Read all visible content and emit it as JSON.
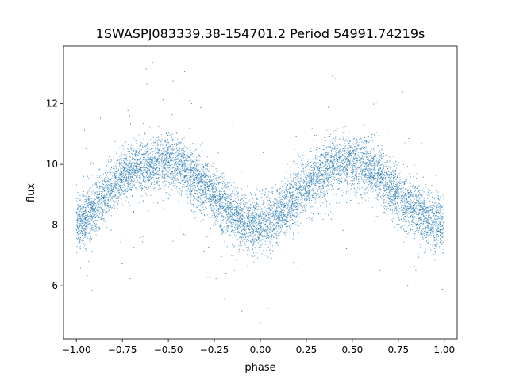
{
  "chart_data": {
    "type": "scatter",
    "title": "1SWASPJ083339.38-154701.2 Period 54991.74219s",
    "xlabel": "phase",
    "ylabel": "flux",
    "xlim": [
      -1.07,
      1.07
    ],
    "ylim": [
      4.25,
      13.9
    ],
    "xticks": [
      -1.0,
      -0.75,
      -0.5,
      -0.25,
      0.0,
      0.25,
      0.5,
      0.75,
      1.0
    ],
    "xtick_labels": [
      "−1.00",
      "−0.75",
      "−0.50",
      "−0.25",
      "0.00",
      "0.25",
      "0.50",
      "0.75",
      "1.00"
    ],
    "yticks": [
      6,
      8,
      10,
      12
    ],
    "ytick_labels": [
      "6",
      "8",
      "10",
      "12"
    ],
    "grid": false,
    "legend": "none",
    "marker_color": "#1f77b4",
    "series": [
      {
        "x": [
          -1.0,
          -0.95,
          -0.9,
          -0.85,
          -0.8,
          -0.75,
          -0.7,
          -0.65,
          -0.6,
          -0.55,
          -0.5,
          -0.45,
          -0.4,
          -0.35,
          -0.3,
          -0.25,
          -0.2,
          -0.15,
          -0.1,
          -0.05,
          0.0,
          0.05,
          0.1,
          0.15,
          0.2,
          0.25,
          0.3,
          0.35,
          0.4,
          0.45,
          0.5,
          0.55,
          0.6,
          0.65,
          0.7,
          0.75,
          0.8,
          0.85,
          0.9,
          0.95,
          1.0
        ],
        "y": [
          8.1,
          8.2,
          8.5,
          8.9,
          9.3,
          9.6,
          9.8,
          9.9,
          10.0,
          10.05,
          10.1,
          10.0,
          9.8,
          9.5,
          9.2,
          8.9,
          8.6,
          8.3,
          8.15,
          8.05,
          8.0,
          8.1,
          8.3,
          8.6,
          9.0,
          9.3,
          9.6,
          9.8,
          10.0,
          10.05,
          10.1,
          10.0,
          9.8,
          9.6,
          9.3,
          9.0,
          8.7,
          8.4,
          8.2,
          8.1,
          8.0
        ]
      }
    ]
  }
}
